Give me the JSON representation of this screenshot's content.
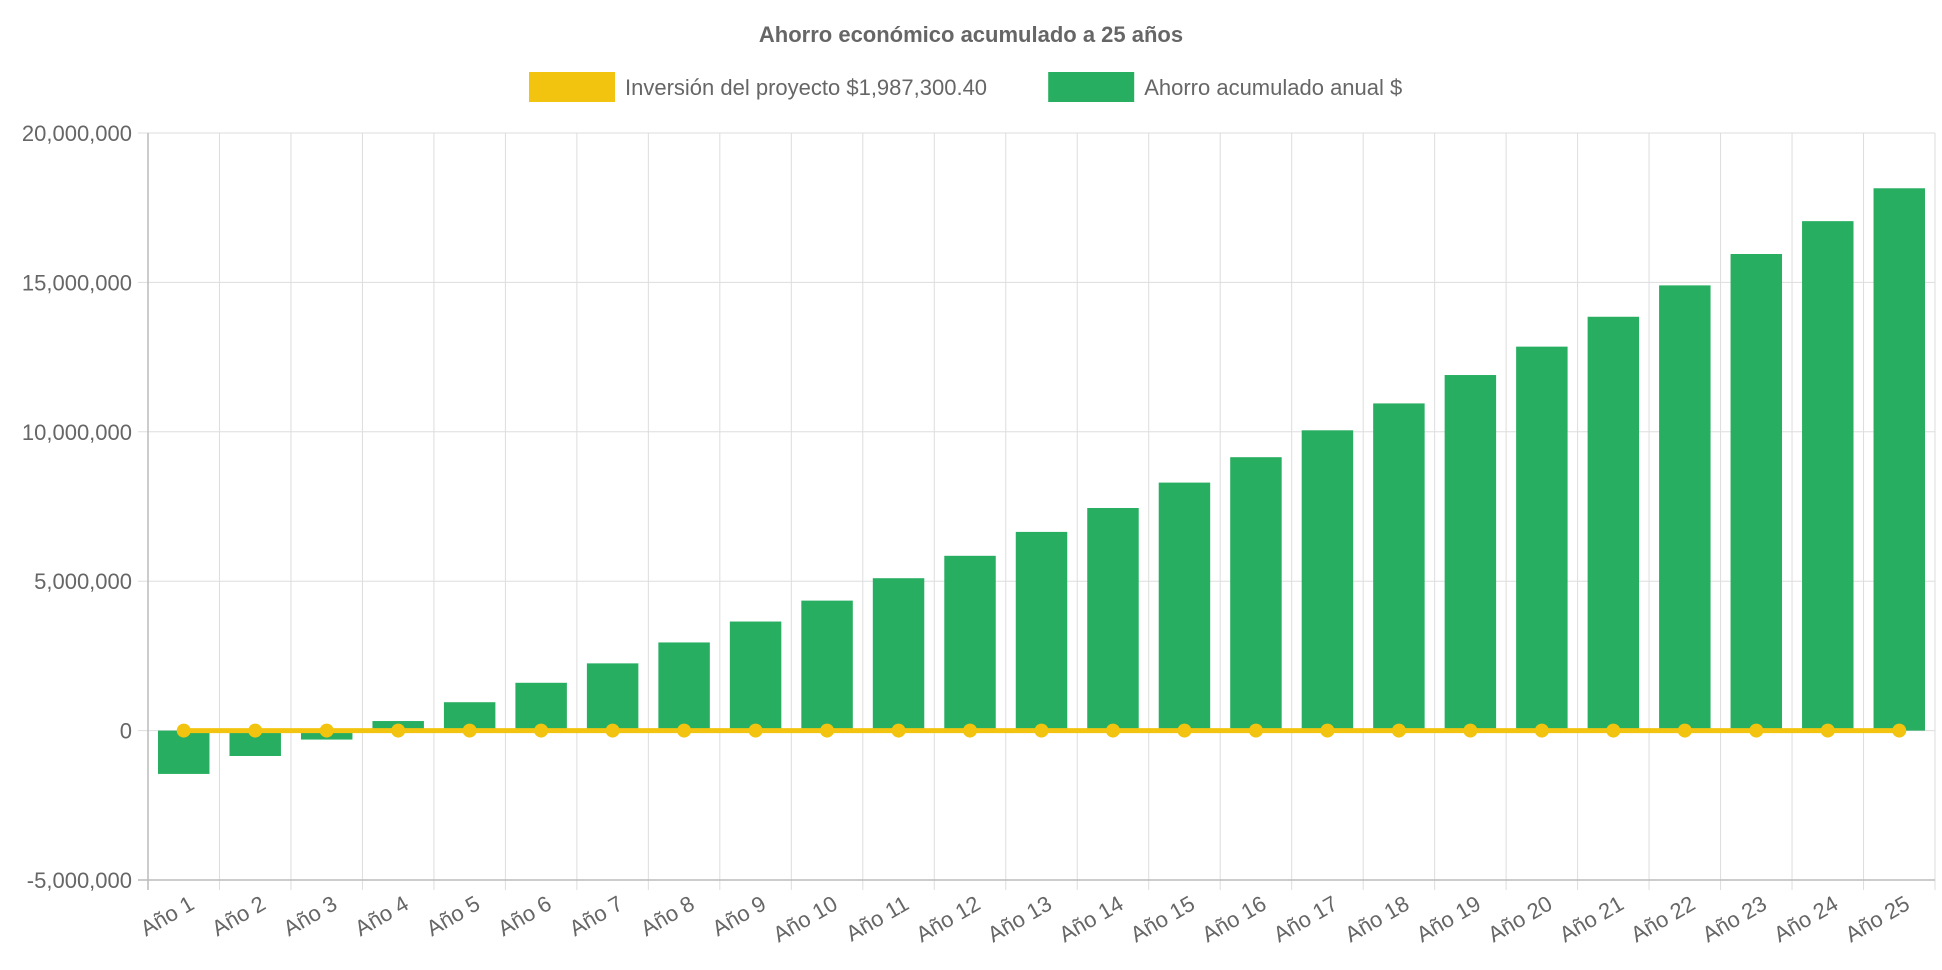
{
  "chart_data": {
    "type": "bar",
    "title": "Ahorro económico acumulado a 25 años",
    "legend_position": "top",
    "grid": true,
    "ylim": [
      -5000000,
      20000000
    ],
    "yticks": [
      -5000000,
      0,
      5000000,
      10000000,
      15000000,
      20000000
    ],
    "ytick_labels": [
      "-5,000,000",
      "0",
      "5,000,000",
      "10,000,000",
      "15,000,000",
      "20,000,000"
    ],
    "categories": [
      "Año 1",
      "Año 2",
      "Año 3",
      "Año 4",
      "Año 5",
      "Año 6",
      "Año 7",
      "Año 8",
      "Año 9",
      "Año 10",
      "Año 11",
      "Año 12",
      "Año 13",
      "Año 14",
      "Año 15",
      "Año 16",
      "Año 17",
      "Año 18",
      "Año 19",
      "Año 20",
      "Año 21",
      "Año 22",
      "Año 23",
      "Año 24",
      "Año 25"
    ],
    "series": [
      {
        "name": "Inversión del proyecto $1,987,300.40",
        "type": "line",
        "color": "#f2c40f",
        "values": [
          0,
          0,
          0,
          0,
          0,
          0,
          0,
          0,
          0,
          0,
          0,
          0,
          0,
          0,
          0,
          0,
          0,
          0,
          0,
          0,
          0,
          0,
          0,
          0,
          0
        ]
      },
      {
        "name": "Ahorro acumulado anual $",
        "type": "bar",
        "color": "#27ae60",
        "values": [
          -1450000,
          -850000,
          -300000,
          320000,
          950000,
          1600000,
          2250000,
          2950000,
          3650000,
          4350000,
          5100000,
          5850000,
          6650000,
          7450000,
          8300000,
          9150000,
          10050000,
          10950000,
          11900000,
          12850000,
          13850000,
          14900000,
          15950000,
          17050000,
          18150000
        ]
      }
    ]
  }
}
